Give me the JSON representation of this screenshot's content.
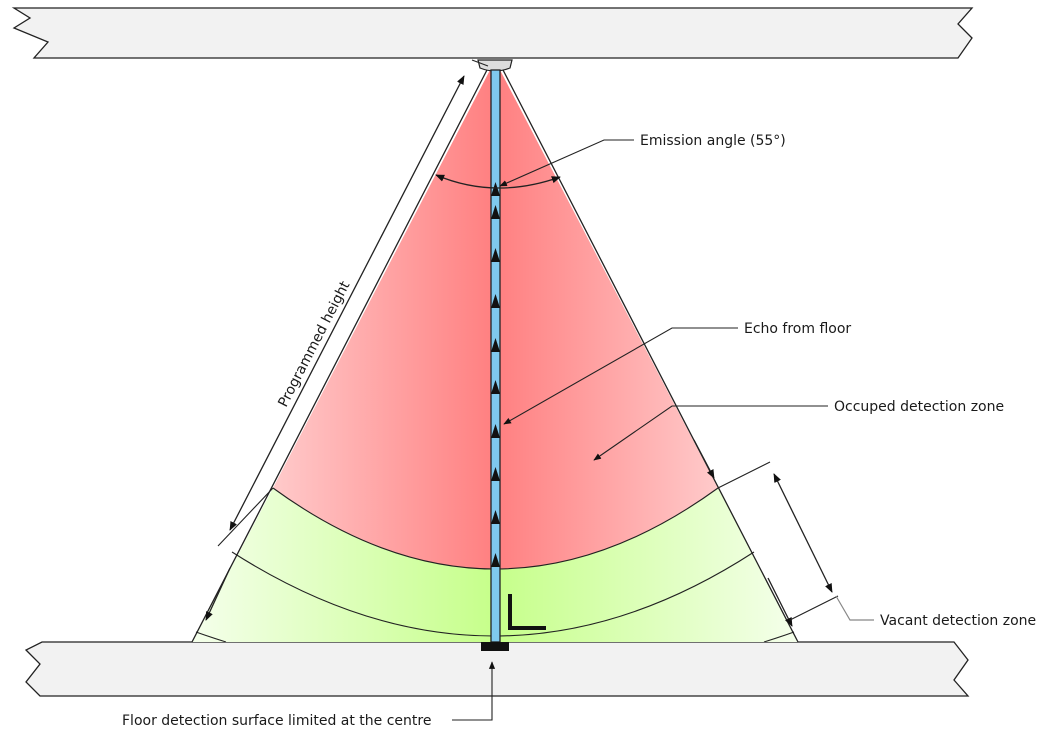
{
  "labels": {
    "emission_angle": "Emission angle (55°)",
    "echo_from_floor": "Echo from floor",
    "occupied_zone": "Occuped detection zone",
    "vacant_zone": "Vacant detection zone",
    "programmed_height": "Programmed height",
    "floor_surface": "Floor detection surface limited at the centre"
  },
  "colors": {
    "slab_fill": "#f2f2f2",
    "occupied_zone_center": "#ff7f80",
    "occupied_zone_edge": "#ffe6e6",
    "vacant_zone_center": "#c6ff8a",
    "vacant_zone_edge": "#f5ffec",
    "echo_beam": "#7fc9ee",
    "line": "#222222"
  }
}
